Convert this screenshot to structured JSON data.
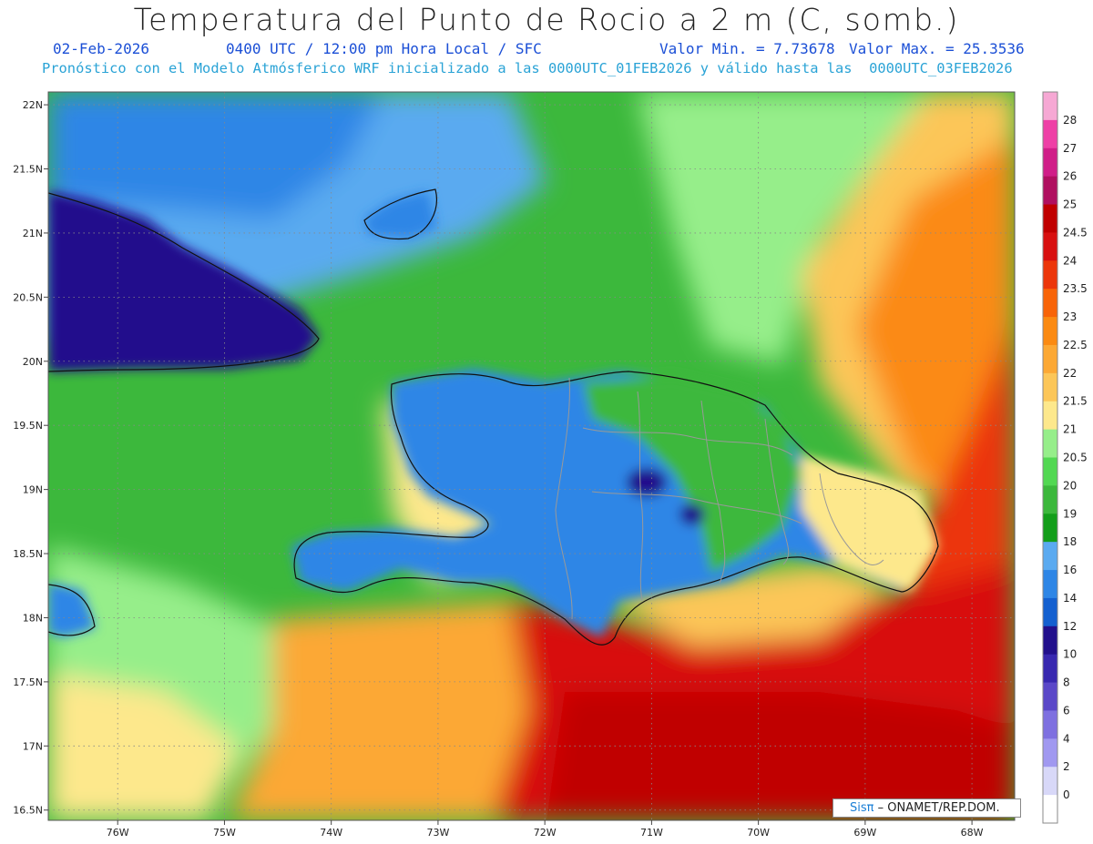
{
  "header": {
    "title": "Temperatura del Punto de Rocio a 2 m (C, somb.)",
    "date": "02-Feb-2026",
    "time": "0400 UTC / 12:00 pm Hora Local / SFC",
    "valor_min": "Valor Min. = 7.73678",
    "valor_max": "Valor Max. = 25.3536",
    "model_line": "Pronóstico con el Modelo Atmósferico WRF inicializado a las 0000UTC_01FEB2026 y válido hasta las  0000UTC_03FEB2026"
  },
  "axes": {
    "lat_labels": [
      "22N",
      "21.5N",
      "21N",
      "20.5N",
      "20N",
      "19.5N",
      "19N",
      "18.5N",
      "18N",
      "17.5N",
      "17N",
      "16.5N"
    ],
    "lat_values": [
      22,
      21.5,
      21,
      20.5,
      20,
      19.5,
      19,
      18.5,
      18,
      17.5,
      17,
      16.5
    ],
    "lon_labels": [
      "76W",
      "75W",
      "74W",
      "73W",
      "72W",
      "71W",
      "70W",
      "69W",
      "68W"
    ],
    "lon_values": [
      -76,
      -75,
      -74,
      -73,
      -72,
      -71,
      -70,
      -69,
      -68
    ],
    "lat_range": [
      16.42,
      22.1
    ],
    "lon_range": [
      -76.65,
      -67.6
    ]
  },
  "legend": {
    "levels": [
      "0",
      "2",
      "4",
      "6",
      "8",
      "10",
      "12",
      "14",
      "16",
      "18",
      "19",
      "20",
      "20.5",
      "21",
      "21.5",
      "22",
      "22.5",
      "23",
      "23.5",
      "24",
      "24.5",
      "25",
      "26",
      "27",
      "28"
    ],
    "colors": [
      "#ffffff",
      "#d8d8f8",
      "#a098f0",
      "#7e70e0",
      "#5a48c8",
      "#3828b0",
      "#22108c",
      "#1460d0",
      "#2e86e6",
      "#5aaaf0",
      "#139e1a",
      "#3cb83c",
      "#52d852",
      "#96ee8a",
      "#fde88c",
      "#fcc658",
      "#fca834",
      "#fb8a12",
      "#f86408",
      "#ec360a",
      "#d81010",
      "#c00000",
      "#b01060",
      "#d01e88",
      "#ee40a6",
      "#f6a8d4"
    ],
    "unit": "C"
  },
  "credit": {
    "sis": "Sisπ",
    "org": " – ONAMET/REP.DOM."
  }
}
